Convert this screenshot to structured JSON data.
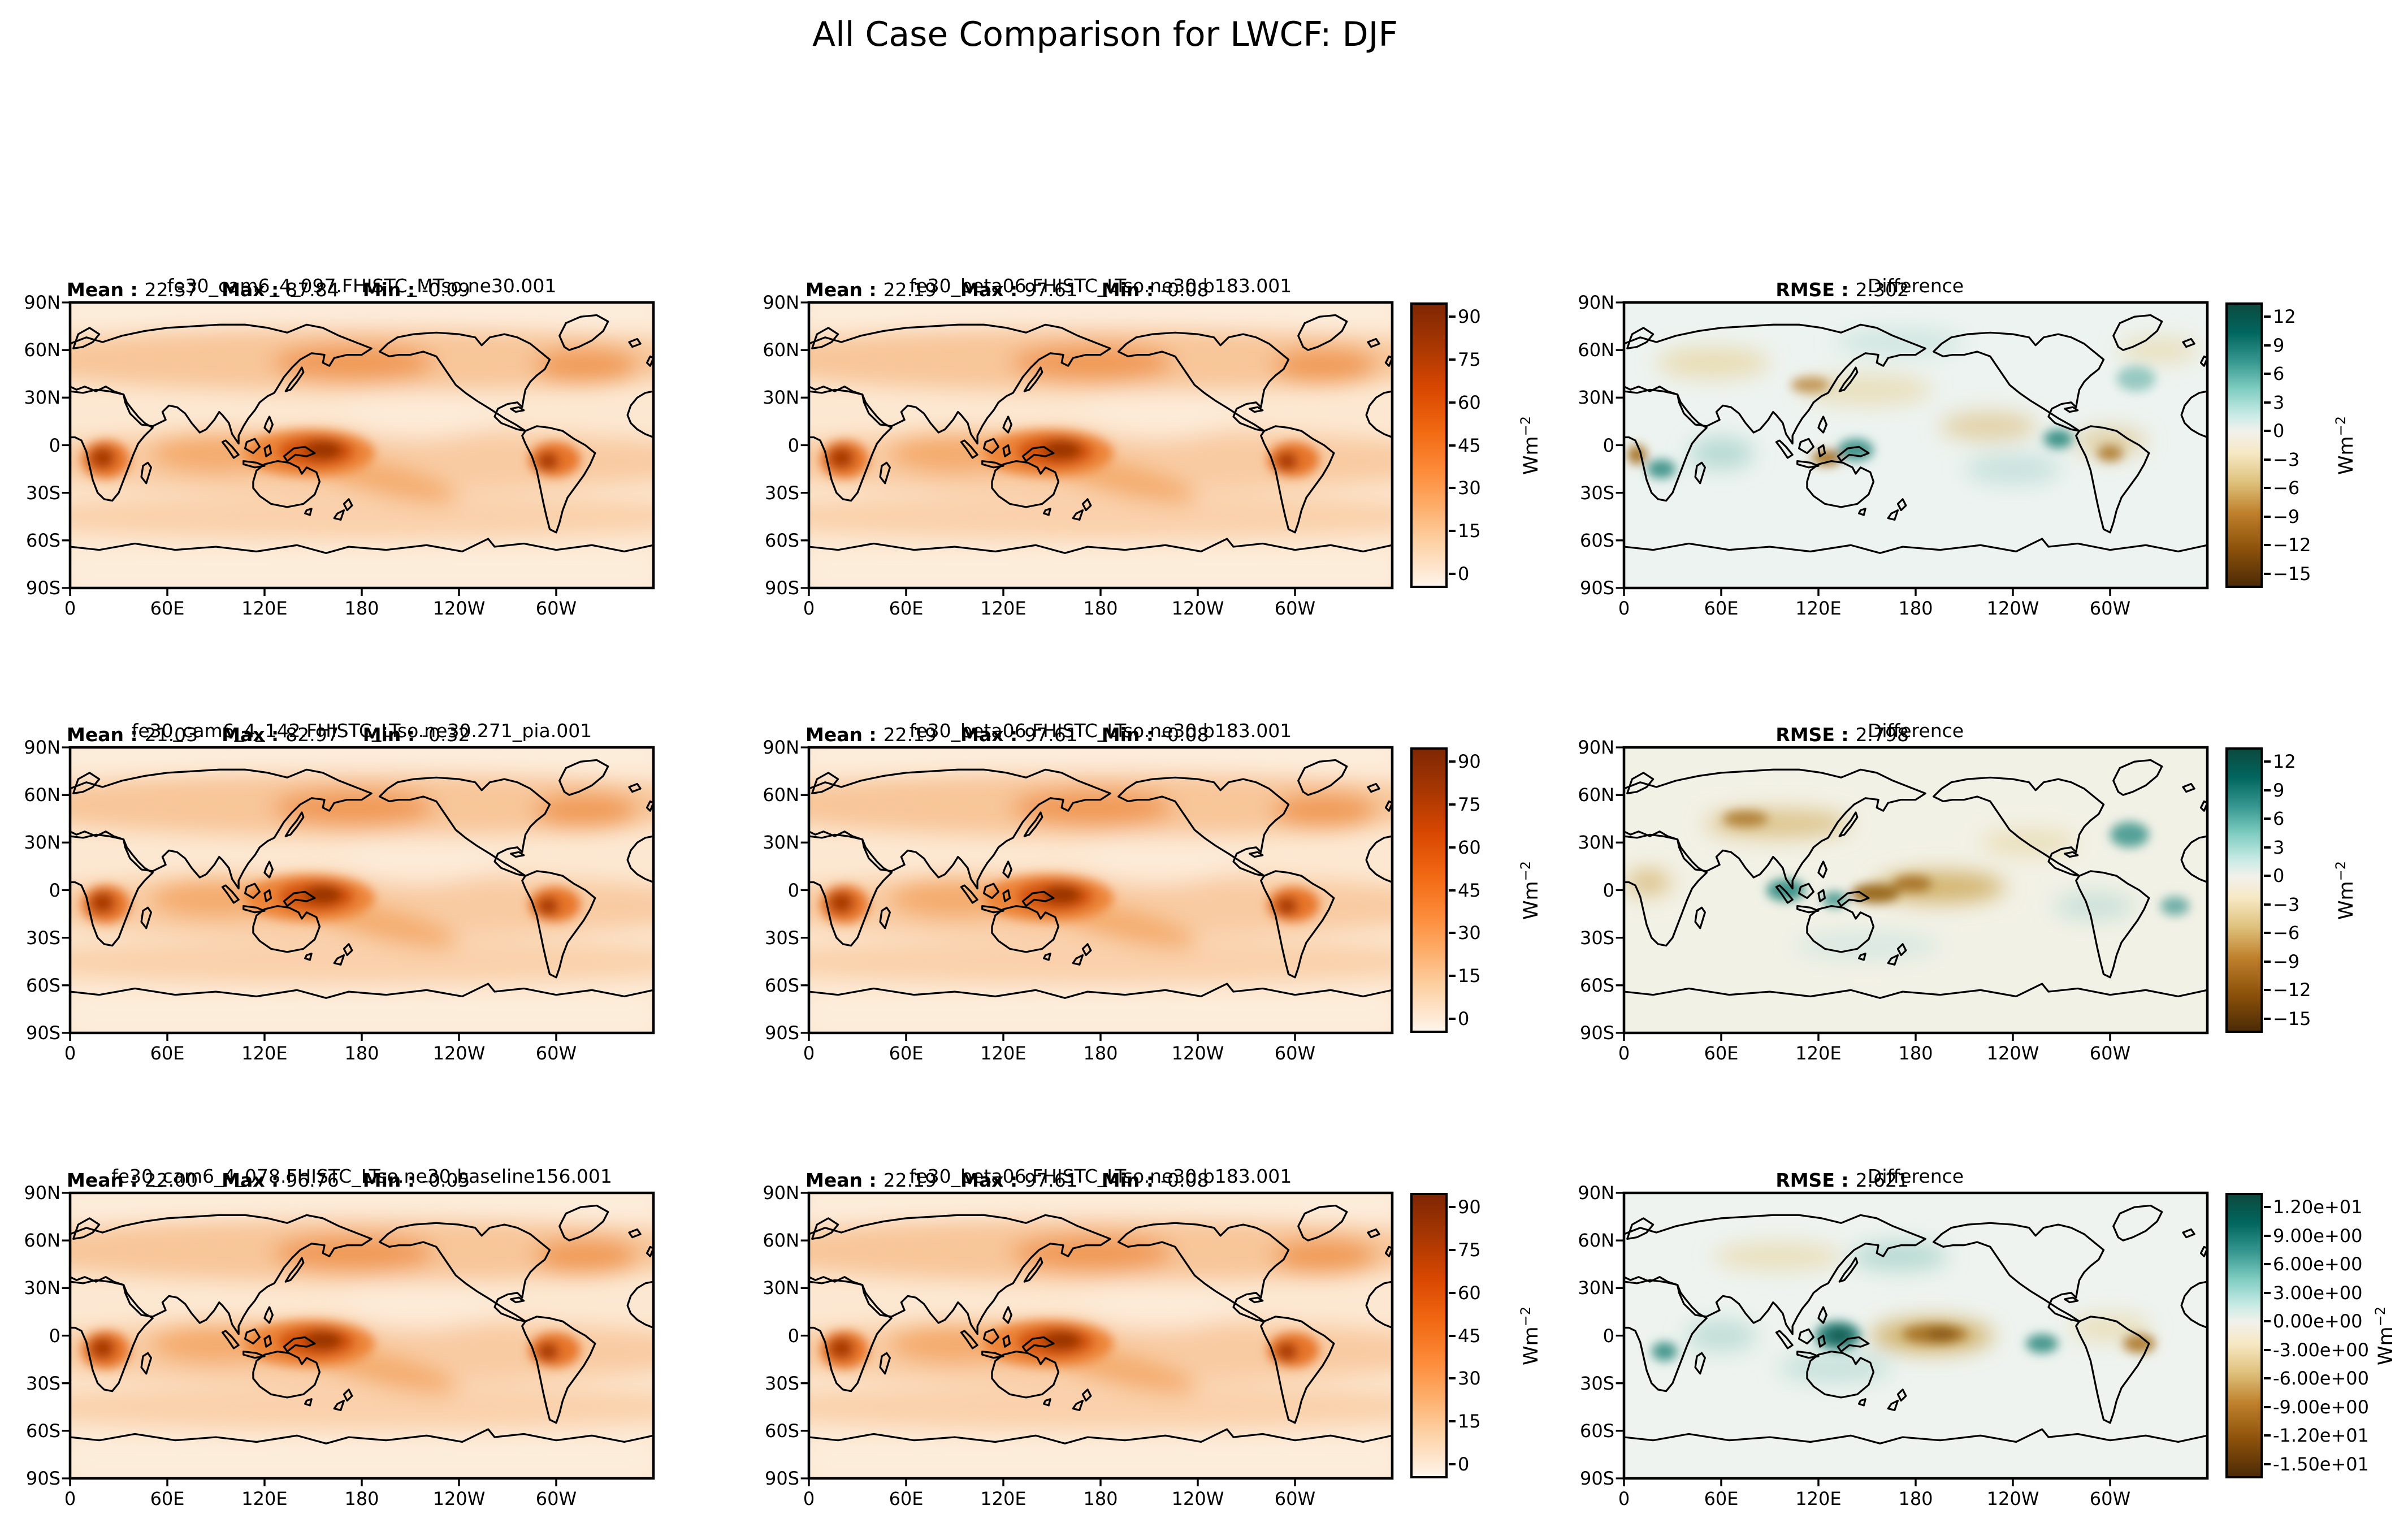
{
  "figure": {
    "title": "All Case Comparison for LWCF: DJF"
  },
  "labels": {
    "mean": "Mean :",
    "max": "Max :",
    "min": "Min :",
    "rmse": "RMSE :",
    "units": "Wm",
    "units_exp": "−2"
  },
  "axes": {
    "lat": [
      "90N",
      "60N",
      "30N",
      "0",
      "30S",
      "60S",
      "90S"
    ],
    "lon": [
      "0",
      "60E",
      "120E",
      "180",
      "120W",
      "60W"
    ]
  },
  "colorbars": {
    "model": {
      "ticks": [
        "90",
        "75",
        "60",
        "45",
        "30",
        "15",
        "0"
      ]
    },
    "diff": {
      "ticks": [
        "12",
        "9",
        "6",
        "3",
        "0",
        "−3",
        "−6",
        "−9",
        "−12",
        "−15"
      ]
    },
    "diff_sci": {
      "ticks": [
        "1.20e+01",
        "9.00e+00",
        "6.00e+00",
        "3.00e+00",
        "0.00e+00",
        "-3.00e+00",
        "-6.00e+00",
        "-9.00e+00",
        "-1.20e+01",
        "-1.50e+01"
      ]
    }
  },
  "panels": [
    {
      "title": "fe30_cam6_4_097.FHISTC_MTso.ne30.001",
      "mean": "22.37",
      "max": "87.84",
      "min": "-0.09"
    },
    {
      "title": "fe30_beta06.FHISTC_LTso.ne30.b183.001",
      "mean": "22.19",
      "max": "97.61",
      "min": "-0.08"
    },
    {
      "title": "Difference",
      "rmse": "2.302"
    },
    {
      "title": "fe30_cam6_4_142.FHISTC_LTso.ne30.271_pia.001",
      "mean": "21.03",
      "max": "82.97",
      "min": "-0.32"
    },
    {
      "title": "fe30_beta06.FHISTC_LTso.ne30.b183.001",
      "mean": "22.19",
      "max": "97.61",
      "min": "-0.08"
    },
    {
      "title": "Difference",
      "rmse": "2.798"
    },
    {
      "title": "fe30_cam6_4_078.FHISTC_LTso.ne30.baseline156.001",
      "mean": "22.00",
      "max": "96.76",
      "min": "-0.05"
    },
    {
      "title": "fe30_beta06.FHISTC_LTso.ne30.b183.001",
      "mean": "22.19",
      "max": "97.61",
      "min": "-0.08"
    },
    {
      "title": "Difference",
      "rmse": "2.621"
    }
  ],
  "chart_data": [
    {
      "panel": "row1-case",
      "type": "heatmap",
      "projection": "global-latlon-map",
      "title": "fe30_cam6_4_097.FHISTC_MTso.ne30.001",
      "variable": "LWCF",
      "season": "DJF",
      "units": "Wm−2",
      "colormap": "Oranges",
      "stats": {
        "mean": 22.37,
        "max": 87.84,
        "min": -0.09
      },
      "colorbar_ticks": [
        90,
        75,
        60,
        45,
        30,
        15,
        0
      ],
      "x_ticks": [
        "0",
        "60E",
        "120E",
        "180",
        "120W",
        "60W"
      ],
      "y_ticks": [
        "90N",
        "60N",
        "30N",
        "0",
        "30S",
        "60S",
        "90S"
      ]
    },
    {
      "panel": "row1-reference",
      "type": "heatmap",
      "projection": "global-latlon-map",
      "title": "fe30_beta06.FHISTC_LTso.ne30.b183.001",
      "variable": "LWCF",
      "season": "DJF",
      "units": "Wm−2",
      "colormap": "Oranges",
      "stats": {
        "mean": 22.19,
        "max": 97.61,
        "min": -0.08
      },
      "colorbar_ticks": [
        90,
        75,
        60,
        45,
        30,
        15,
        0
      ],
      "x_ticks": [
        "0",
        "60E",
        "120E",
        "180",
        "120W",
        "60W"
      ],
      "y_ticks": [
        "90N",
        "60N",
        "30N",
        "0",
        "30S",
        "60S",
        "90S"
      ]
    },
    {
      "panel": "row1-difference",
      "type": "heatmap",
      "projection": "global-latlon-map",
      "title": "Difference",
      "variable": "LWCF difference",
      "season": "DJF",
      "units": "Wm−2",
      "colormap": "BrBG",
      "stats": {
        "rmse": 2.302
      },
      "colorbar_ticks": [
        12,
        9,
        6,
        3,
        0,
        -3,
        -6,
        -9,
        -12,
        -15
      ],
      "x_ticks": [
        "0",
        "60E",
        "120E",
        "180",
        "120W",
        "60W"
      ],
      "y_ticks": [
        "90N",
        "60N",
        "30N",
        "0",
        "30S",
        "60S",
        "90S"
      ]
    },
    {
      "panel": "row2-case",
      "type": "heatmap",
      "projection": "global-latlon-map",
      "title": "fe30_cam6_4_142.FHISTC_LTso.ne30.271_pia.001",
      "variable": "LWCF",
      "season": "DJF",
      "units": "Wm−2",
      "colormap": "Oranges",
      "stats": {
        "mean": 21.03,
        "max": 82.97,
        "min": -0.32
      },
      "colorbar_ticks": [
        90,
        75,
        60,
        45,
        30,
        15,
        0
      ],
      "x_ticks": [
        "0",
        "60E",
        "120E",
        "180",
        "120W",
        "60W"
      ],
      "y_ticks": [
        "90N",
        "60N",
        "30N",
        "0",
        "30S",
        "60S",
        "90S"
      ]
    },
    {
      "panel": "row2-reference",
      "type": "heatmap",
      "projection": "global-latlon-map",
      "title": "fe30_beta06.FHISTC_LTso.ne30.b183.001",
      "variable": "LWCF",
      "season": "DJF",
      "units": "Wm−2",
      "colormap": "Oranges",
      "stats": {
        "mean": 22.19,
        "max": 97.61,
        "min": -0.08
      },
      "colorbar_ticks": [
        90,
        75,
        60,
        45,
        30,
        15,
        0
      ],
      "x_ticks": [
        "0",
        "60E",
        "120E",
        "180",
        "120W",
        "60W"
      ],
      "y_ticks": [
        "90N",
        "60N",
        "30N",
        "0",
        "30S",
        "60S",
        "90S"
      ]
    },
    {
      "panel": "row2-difference",
      "type": "heatmap",
      "projection": "global-latlon-map",
      "title": "Difference",
      "variable": "LWCF difference",
      "season": "DJF",
      "units": "Wm−2",
      "colormap": "BrBG",
      "stats": {
        "rmse": 2.798
      },
      "colorbar_ticks": [
        12,
        9,
        6,
        3,
        0,
        -3,
        -6,
        -9,
        -12,
        -15
      ],
      "x_ticks": [
        "0",
        "60E",
        "120E",
        "180",
        "120W",
        "60W"
      ],
      "y_ticks": [
        "90N",
        "60N",
        "30N",
        "0",
        "30S",
        "60S",
        "90S"
      ]
    },
    {
      "panel": "row3-case",
      "type": "heatmap",
      "projection": "global-latlon-map",
      "title": "fe30_cam6_4_078.FHISTC_LTso.ne30.baseline156.001",
      "variable": "LWCF",
      "season": "DJF",
      "units": "Wm−2",
      "colormap": "Oranges",
      "stats": {
        "mean": 22.0,
        "max": 96.76,
        "min": -0.05
      },
      "colorbar_ticks": [
        90,
        75,
        60,
        45,
        30,
        15,
        0
      ],
      "x_ticks": [
        "0",
        "60E",
        "120E",
        "180",
        "120W",
        "60W"
      ],
      "y_ticks": [
        "90N",
        "60N",
        "30N",
        "0",
        "30S",
        "60S",
        "90S"
      ]
    },
    {
      "panel": "row3-reference",
      "type": "heatmap",
      "projection": "global-latlon-map",
      "title": "fe30_beta06.FHISTC_LTso.ne30.b183.001",
      "variable": "LWCF",
      "season": "DJF",
      "units": "Wm−2",
      "colormap": "Oranges",
      "stats": {
        "mean": 22.19,
        "max": 97.61,
        "min": -0.08
      },
      "colorbar_ticks": [
        90,
        75,
        60,
        45,
        30,
        15,
        0
      ],
      "x_ticks": [
        "0",
        "60E",
        "120E",
        "180",
        "120W",
        "60W"
      ],
      "y_ticks": [
        "90N",
        "60N",
        "30N",
        "0",
        "30S",
        "60S",
        "90S"
      ]
    },
    {
      "panel": "row3-difference",
      "type": "heatmap",
      "projection": "global-latlon-map",
      "title": "Difference",
      "variable": "LWCF difference",
      "season": "DJF",
      "units": "Wm−2",
      "colormap": "BrBG",
      "stats": {
        "rmse": 2.621
      },
      "colorbar_ticks": [
        12,
        9,
        6,
        3,
        0,
        -3,
        -6,
        -9,
        -12,
        -15
      ],
      "x_ticks": [
        "0",
        "60E",
        "120E",
        "180",
        "120W",
        "60W"
      ],
      "y_ticks": [
        "90N",
        "60N",
        "30N",
        "0",
        "30S",
        "60S",
        "90S"
      ]
    }
  ]
}
